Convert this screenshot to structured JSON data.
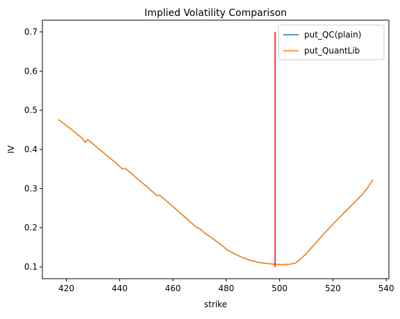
{
  "chart_data": {
    "type": "line",
    "title": "Implied Volatility Comparison",
    "xlabel": "strike",
    "ylabel": "IV",
    "xlim": [
      411,
      541
    ],
    "ylim": [
      0.07,
      0.73
    ],
    "xticks": [
      420,
      440,
      460,
      480,
      500,
      520,
      540
    ],
    "yticks": [
      0.1,
      0.2,
      0.3,
      0.4,
      0.5,
      0.6,
      0.7
    ],
    "ytick_labels": [
      "0.1",
      "0.2",
      "0.3",
      "0.4",
      "0.5",
      "0.6",
      "0.7"
    ],
    "legend_position": "upper right",
    "series": [
      {
        "name": "put_QC(plain)",
        "color": "#1f77b4",
        "points": [
          [
            417,
            0.476
          ],
          [
            420,
            0.461
          ],
          [
            423,
            0.445
          ],
          [
            426,
            0.428
          ],
          [
            427,
            0.418
          ],
          [
            428,
            0.425
          ],
          [
            430,
            0.414
          ],
          [
            433,
            0.397
          ],
          [
            436,
            0.38
          ],
          [
            439,
            0.363
          ],
          [
            441,
            0.35
          ],
          [
            442,
            0.352
          ],
          [
            444,
            0.341
          ],
          [
            447,
            0.323
          ],
          [
            450,
            0.306
          ],
          [
            453,
            0.288
          ],
          [
            454,
            0.282
          ],
          [
            455,
            0.283
          ],
          [
            457,
            0.272
          ],
          [
            460,
            0.254
          ],
          [
            463,
            0.236
          ],
          [
            466,
            0.218
          ],
          [
            469,
            0.2
          ],
          [
            470,
            0.198
          ],
          [
            472,
            0.186
          ],
          [
            475,
            0.172
          ],
          [
            478,
            0.157
          ],
          [
            480,
            0.145
          ],
          [
            483,
            0.134
          ],
          [
            486,
            0.124
          ],
          [
            489,
            0.117
          ],
          [
            492,
            0.112
          ],
          [
            495,
            0.109
          ],
          [
            498,
            0.107
          ],
          [
            501,
            0.106
          ],
          [
            504,
            0.107
          ],
          [
            506,
            0.11
          ],
          [
            508,
            0.121
          ],
          [
            510,
            0.134
          ],
          [
            513,
            0.157
          ],
          [
            516,
            0.18
          ],
          [
            519,
            0.202
          ],
          [
            522,
            0.223
          ],
          [
            525,
            0.244
          ],
          [
            528,
            0.264
          ],
          [
            531,
            0.285
          ],
          [
            533,
            0.302
          ],
          [
            535,
            0.323
          ]
        ]
      },
      {
        "name": "put_QuantLib",
        "color": "#ff7f0e",
        "points": [
          [
            417,
            0.476
          ],
          [
            420,
            0.461
          ],
          [
            423,
            0.445
          ],
          [
            426,
            0.428
          ],
          [
            427,
            0.418
          ],
          [
            428,
            0.425
          ],
          [
            430,
            0.414
          ],
          [
            433,
            0.397
          ],
          [
            436,
            0.38
          ],
          [
            439,
            0.363
          ],
          [
            441,
            0.35
          ],
          [
            442,
            0.352
          ],
          [
            444,
            0.341
          ],
          [
            447,
            0.323
          ],
          [
            450,
            0.306
          ],
          [
            453,
            0.288
          ],
          [
            454,
            0.282
          ],
          [
            455,
            0.283
          ],
          [
            457,
            0.272
          ],
          [
            460,
            0.254
          ],
          [
            463,
            0.236
          ],
          [
            466,
            0.218
          ],
          [
            469,
            0.2
          ],
          [
            470,
            0.198
          ],
          [
            472,
            0.186
          ],
          [
            475,
            0.172
          ],
          [
            478,
            0.157
          ],
          [
            480,
            0.145
          ],
          [
            483,
            0.134
          ],
          [
            486,
            0.124
          ],
          [
            489,
            0.117
          ],
          [
            492,
            0.112
          ],
          [
            495,
            0.109
          ],
          [
            498,
            0.107
          ],
          [
            501,
            0.106
          ],
          [
            504,
            0.107
          ],
          [
            506,
            0.11
          ],
          [
            508,
            0.121
          ],
          [
            510,
            0.134
          ],
          [
            513,
            0.157
          ],
          [
            516,
            0.18
          ],
          [
            519,
            0.202
          ],
          [
            522,
            0.223
          ],
          [
            525,
            0.244
          ],
          [
            528,
            0.264
          ],
          [
            531,
            0.285
          ],
          [
            533,
            0.302
          ],
          [
            535,
            0.323
          ]
        ]
      }
    ],
    "vlines": [
      {
        "x": 498.3,
        "ymin": 0.1,
        "ymax": 0.7,
        "color": "#ff0000"
      }
    ]
  }
}
